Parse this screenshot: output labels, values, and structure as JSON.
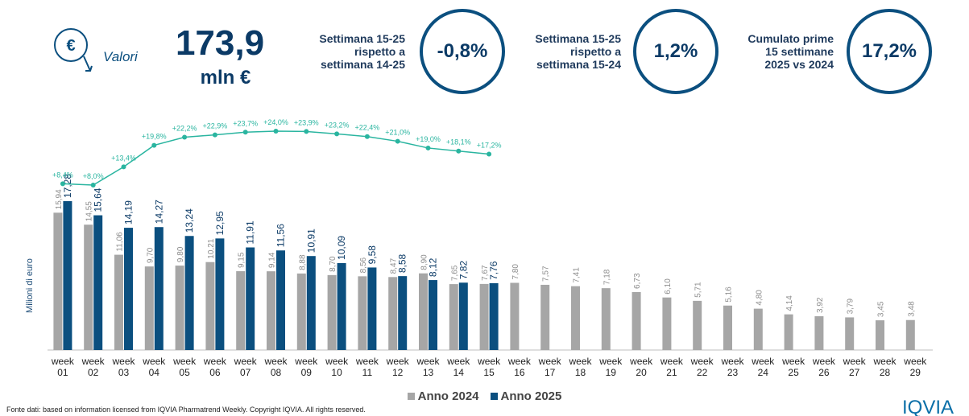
{
  "header": {
    "icon": "€",
    "kpi_label": "Valori",
    "kpi_value": "173,9",
    "kpi_unit": "mln €",
    "cards": [
      {
        "label": "Settimana 15-25\nrispetto a\nsettimana 14-25",
        "value": "-0,8%"
      },
      {
        "label": "Settimana 15-25\nrispetto a\nsettimana 15-24",
        "value": "1,2%"
      },
      {
        "label": "Cumulato prime\n15 settimane\n2025 vs 2024",
        "value": "17,2%"
      }
    ]
  },
  "chart_data": {
    "type": "bar",
    "y_label": "Milioni di euro",
    "categories": [
      "week 01",
      "week 02",
      "week 03",
      "week 04",
      "week 05",
      "week 06",
      "week 07",
      "week 08",
      "week 09",
      "week 10",
      "week 11",
      "week 12",
      "week 13",
      "week 14",
      "week 15",
      "week 16",
      "week 17",
      "week 18",
      "week 19",
      "week 20",
      "week 21",
      "week 22",
      "week 23",
      "week 24",
      "week 25",
      "week 26",
      "week 27",
      "week 28",
      "week 29"
    ],
    "series": [
      {
        "name": "Anno 2024",
        "color": "#a6a6a6",
        "values": [
          15.94,
          14.55,
          11.06,
          9.7,
          9.8,
          10.21,
          9.15,
          9.14,
          8.88,
          8.7,
          8.56,
          8.47,
          8.9,
          7.65,
          7.67,
          7.8,
          7.57,
          7.41,
          7.18,
          6.73,
          6.1,
          5.71,
          5.16,
          4.8,
          4.14,
          3.92,
          3.79,
          3.45,
          3.48
        ],
        "value_labels": [
          "15,94",
          "14,55",
          "11,06",
          "9,70",
          "9,80",
          "10,21",
          "9,15",
          "9,14",
          "8,88",
          "8,70",
          "8,56",
          "8,47",
          "8,90",
          "7,65",
          "7,67",
          "7,80",
          "7,57",
          "7,41",
          "7,18",
          "6,73",
          "6,10",
          "5,71",
          "5,16",
          "4,80",
          "4,14",
          "3,92",
          "3,79",
          "3,45",
          "3,48"
        ]
      },
      {
        "name": "Anno 2025",
        "color": "#0b4f7f",
        "values": [
          17.28,
          15.64,
          14.19,
          14.27,
          13.24,
          12.95,
          11.91,
          11.56,
          10.91,
          10.09,
          9.58,
          8.58,
          8.12,
          7.82,
          7.76,
          null,
          null,
          null,
          null,
          null,
          null,
          null,
          null,
          null,
          null,
          null,
          null,
          null,
          null
        ],
        "value_labels": [
          "17,28",
          "15,64",
          "14,19",
          "14,27",
          "13,24",
          "12,95",
          "11,91",
          "11,56",
          "10,91",
          "10,09",
          "9,58",
          "8,58",
          "8,12",
          "7,82",
          "7,76",
          null,
          null,
          null,
          null,
          null,
          null,
          null,
          null,
          null,
          null,
          null,
          null,
          null,
          null
        ]
      }
    ],
    "growth": {
      "color": "#2ab5a0",
      "values": [
        8.4,
        8.0,
        13.4,
        19.8,
        22.2,
        22.9,
        23.7,
        24.0,
        23.9,
        23.2,
        22.4,
        21.0,
        19.0,
        18.1,
        17.2
      ],
      "value_labels": [
        "+8,4%",
        "+8,0%",
        "+13,4%",
        "+19,8%",
        "+22,2%",
        "+22,9%",
        "+23,7%",
        "+24,0%",
        "+23,9%",
        "+23,2%",
        "+22,4%",
        "+21,0%",
        "+19,0%",
        "+18,1%",
        "+17,2%"
      ]
    }
  },
  "footer": "Fonte dati: based on information licensed from IQVIA Pharmatrend Weekly. Copyright IQVIA. All rights reserved.",
  "logo": "IQVIA"
}
